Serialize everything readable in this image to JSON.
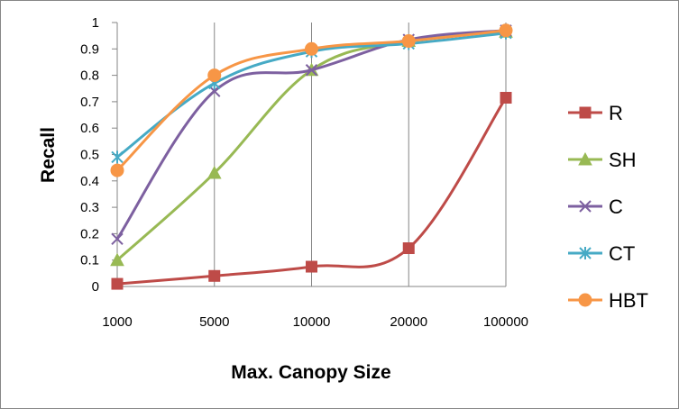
{
  "chart_data": {
    "type": "line",
    "title": "",
    "xlabel": "Max. Canopy Size",
    "ylabel": "Recall",
    "categories": [
      "1000",
      "5000",
      "10000",
      "20000",
      "100000"
    ],
    "yticks": [
      "0",
      "0.1",
      "0.2",
      "0.3",
      "0.4",
      "0.5",
      "0.6",
      "0.7",
      "0.8",
      "0.9",
      "1"
    ],
    "ylim": [
      0,
      1
    ],
    "grid": "vertical",
    "legend_position": "right",
    "smooth": true,
    "series": [
      {
        "name": "R",
        "color": "#be4b48",
        "marker": "square",
        "values": [
          0.01,
          0.04,
          0.075,
          0.145,
          0.715
        ]
      },
      {
        "name": "SH",
        "color": "#98b954",
        "marker": "triangle",
        "values": [
          0.1,
          0.43,
          0.82,
          0.93,
          0.965
        ]
      },
      {
        "name": "C",
        "color": "#7d60a0",
        "marker": "x",
        "values": [
          0.18,
          0.74,
          0.82,
          0.935,
          0.97
        ]
      },
      {
        "name": "CT",
        "color": "#46aac5",
        "marker": "star",
        "values": [
          0.49,
          0.77,
          0.89,
          0.92,
          0.96
        ]
      },
      {
        "name": "HBT",
        "color": "#f79646",
        "marker": "circle",
        "values": [
          0.44,
          0.8,
          0.9,
          0.93,
          0.97
        ]
      }
    ]
  }
}
